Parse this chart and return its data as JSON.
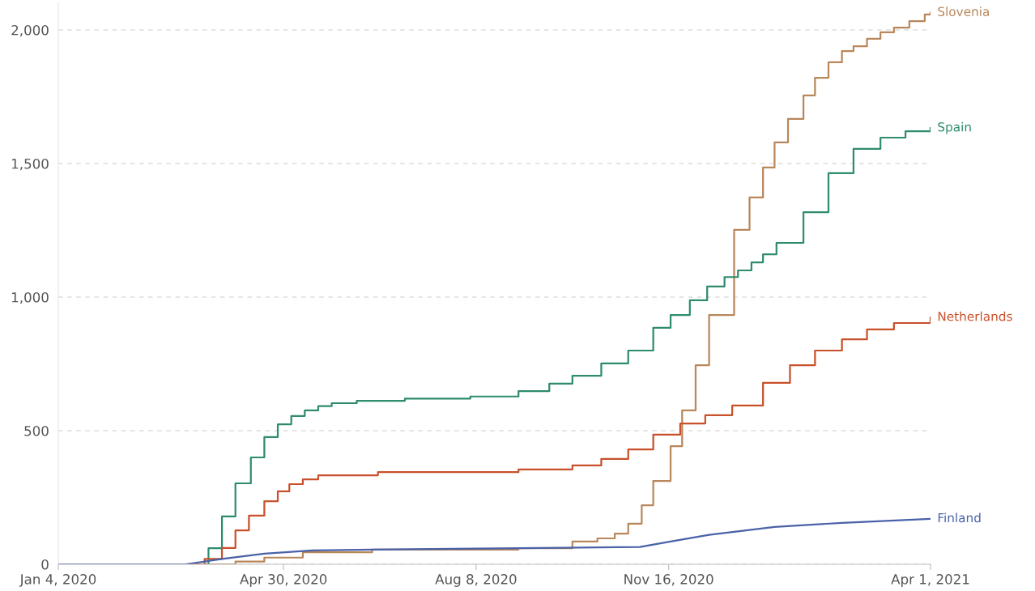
{
  "chart_data": {
    "type": "step",
    "grid": "y",
    "legend": false,
    "xlim": [
      "2020-01-04",
      "2021-04-01"
    ],
    "xticks": [
      {
        "value": "2020-01-04",
        "label": "Jan 4, 2020"
      },
      {
        "value": "2020-04-30",
        "label": "Apr 30, 2020"
      },
      {
        "value": "2020-08-08",
        "label": "Aug 8, 2020"
      },
      {
        "value": "2020-11-16",
        "label": "Nov 16, 2020"
      },
      {
        "value": "2021-04-01",
        "label": "Apr 1, 2021"
      }
    ],
    "ylim": [
      0,
      2100
    ],
    "yticks": [
      0,
      500,
      {
        "value": 1000,
        "label": "1,000"
      },
      {
        "value": 1500,
        "label": "1,500"
      },
      {
        "value": 2000,
        "label": "2,000"
      }
    ],
    "series": [
      {
        "name": "Slovenia",
        "color": "#b8875a",
        "x": [
          "2020-01-04",
          "2020-03-15",
          "2020-04-05",
          "2020-04-20",
          "2020-05-10",
          "2020-06-15",
          "2020-08-30",
          "2020-09-27",
          "2020-10-10",
          "2020-10-19",
          "2020-10-26",
          "2020-11-02",
          "2020-11-08",
          "2020-11-17",
          "2020-11-23",
          "2020-11-30",
          "2020-12-07",
          "2020-12-20",
          "2020-12-28",
          "2021-01-04",
          "2021-01-10",
          "2021-01-17",
          "2021-01-25",
          "2021-01-31",
          "2021-02-07",
          "2021-02-14",
          "2021-02-20",
          "2021-02-27",
          "2021-03-06",
          "2021-03-13",
          "2021-03-21",
          "2021-03-29",
          "2021-04-01"
        ],
        "values": [
          0,
          0,
          10,
          25,
          45,
          55,
          60,
          85,
          97,
          115,
          152,
          221,
          312,
          442,
          576,
          745,
          933,
          1252,
          1373,
          1485,
          1579,
          1667,
          1755,
          1821,
          1879,
          1921,
          1939,
          1967,
          1991,
          2009,
          2033,
          2058,
          2065
        ]
      },
      {
        "name": "Spain",
        "color": "#2e8b6e",
        "x": [
          "2020-01-04",
          "2020-03-15",
          "2020-03-22",
          "2020-03-29",
          "2020-04-05",
          "2020-04-13",
          "2020-04-20",
          "2020-04-27",
          "2020-05-04",
          "2020-05-11",
          "2020-05-18",
          "2020-05-25",
          "2020-06-07",
          "2020-07-02",
          "2020-08-05",
          "2020-08-30",
          "2020-09-15",
          "2020-09-27",
          "2020-10-12",
          "2020-10-26",
          "2020-11-08",
          "2020-11-17",
          "2020-11-27",
          "2020-12-06",
          "2020-12-15",
          "2020-12-22",
          "2020-12-29",
          "2021-01-04",
          "2021-01-11",
          "2021-01-25",
          "2021-02-07",
          "2021-02-20",
          "2021-03-06",
          "2021-03-19",
          "2021-04-01"
        ],
        "values": [
          0,
          0,
          60,
          179,
          303,
          400,
          476,
          524,
          555,
          576,
          592,
          603,
          612,
          620,
          628,
          648,
          676,
          706,
          752,
          800,
          885,
          933,
          988,
          1040,
          1075,
          1100,
          1130,
          1160,
          1203,
          1318,
          1464,
          1555,
          1597,
          1621,
          1633
        ]
      },
      {
        "name": "Netherlands",
        "color": "#c8502a",
        "x": [
          "2020-01-04",
          "2020-03-20",
          "2020-03-29",
          "2020-04-05",
          "2020-04-12",
          "2020-04-20",
          "2020-04-27",
          "2020-05-03",
          "2020-05-10",
          "2020-05-18",
          "2020-06-18",
          "2020-08-30",
          "2020-09-27",
          "2020-10-12",
          "2020-10-26",
          "2020-11-08",
          "2020-11-22",
          "2020-12-05",
          "2020-12-19",
          "2021-01-04",
          "2021-01-18",
          "2021-01-31",
          "2021-02-14",
          "2021-02-27",
          "2021-03-13",
          "2021-04-01"
        ],
        "values": [
          0,
          20,
          61,
          127,
          182,
          236,
          273,
          300,
          318,
          333,
          345,
          355,
          370,
          394,
          430,
          485,
          527,
          558,
          594,
          679,
          745,
          800,
          842,
          879,
          903,
          924
        ]
      },
      {
        "name": "Finland",
        "color": "#4a62a8",
        "type": "line",
        "x": [
          "2020-01-04",
          "2020-03-10",
          "2020-03-29",
          "2020-04-20",
          "2020-05-15",
          "2020-06-15",
          "2020-08-30",
          "2020-11-01",
          "2020-11-17",
          "2020-12-07",
          "2021-01-10",
          "2021-02-14",
          "2021-04-01"
        ],
        "values": [
          0,
          0,
          20,
          40,
          52,
          55,
          60,
          65,
          85,
          110,
          140,
          155,
          170
        ]
      }
    ]
  }
}
